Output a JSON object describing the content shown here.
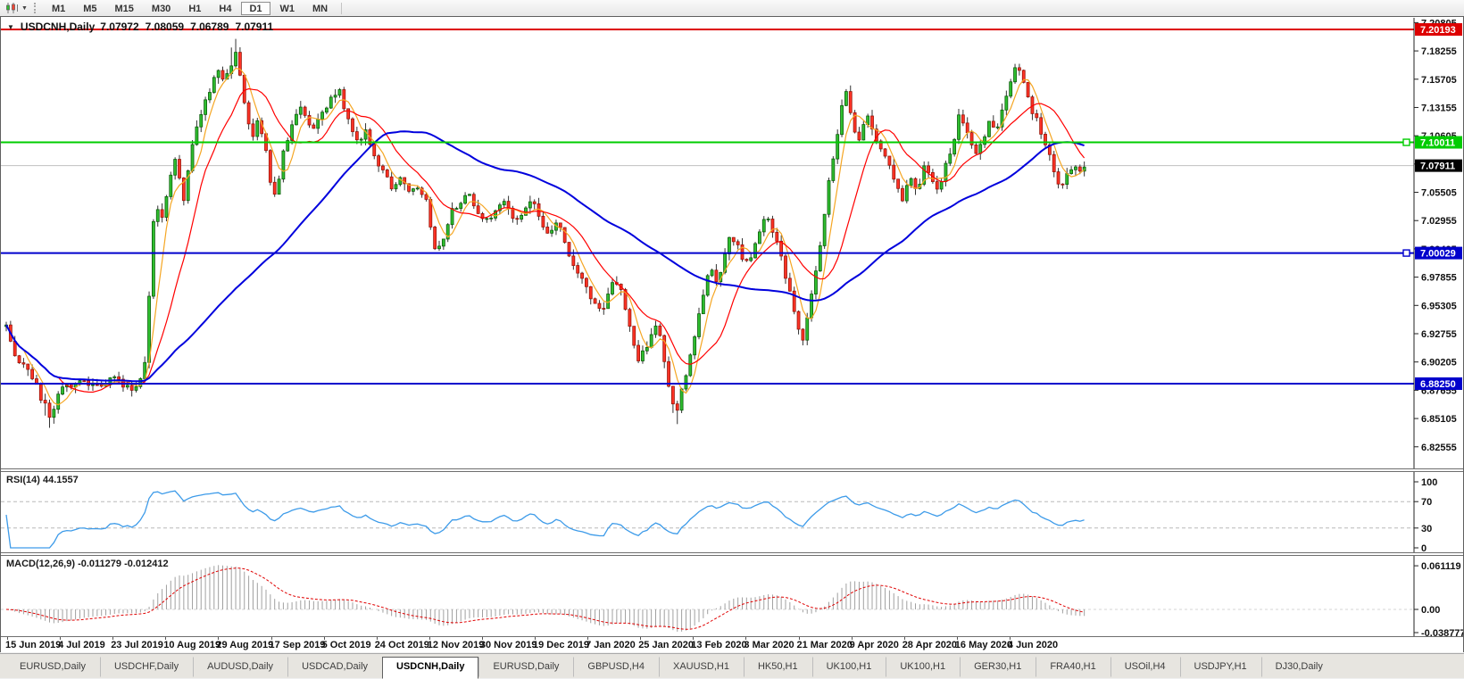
{
  "toolbar": {
    "chart_icon": "candlestick-chart-icon",
    "dropdown_icon": "chevron-down-icon",
    "timeframes": [
      "M1",
      "M5",
      "M15",
      "M30",
      "H1",
      "H4",
      "D1",
      "W1",
      "MN"
    ],
    "active_timeframe": "D1"
  },
  "chart": {
    "symbol": "USDCNH,Daily",
    "ohlc": {
      "open": "7.07972",
      "high": "7.08059",
      "low": "7.06789",
      "close": "7.07911"
    },
    "price_axis": {
      "ticks": [
        "7.20805",
        "7.18255",
        "7.15705",
        "7.13155",
        "7.10605",
        "7.08055",
        "7.05505",
        "7.02955",
        "7.00405",
        "6.97855",
        "6.95305",
        "6.92755",
        "6.90205",
        "6.87655",
        "6.85105",
        "6.82555"
      ]
    },
    "level_lines": [
      {
        "name": "resistance-line",
        "price": 7.20193,
        "label": "7.20193",
        "color": "#dd0000",
        "handle": false
      },
      {
        "name": "green-level-line",
        "price": 7.10011,
        "label": "7.10011",
        "color": "#00cc00",
        "handle": true
      },
      {
        "name": "support-line-1",
        "price": 7.00029,
        "label": "7.00029",
        "color": "#0000cc",
        "handle": true
      },
      {
        "name": "support-line-2",
        "price": 6.8825,
        "label": "6.88250",
        "color": "#0000cc",
        "handle": false
      }
    ],
    "current_price": {
      "label": "7.07911",
      "price": 7.07911,
      "bg": "#000000",
      "text": "#ffffff",
      "line_color": "#c0c0c0"
    }
  },
  "rsi": {
    "label": "RSI(14) 44.1557",
    "period": 14,
    "value": 44.1557,
    "axis": [
      "100",
      "70",
      "30",
      "0"
    ],
    "levels": [
      70,
      30
    ],
    "line_color": "#3d9be9"
  },
  "macd": {
    "label": "MACD(12,26,9) -0.011279 -0.012412",
    "fast": 12,
    "slow": 26,
    "signal": 9,
    "value": -0.011279,
    "signal_value": -0.012412,
    "axis_top": "0.061119",
    "axis_zero": "0.00",
    "axis_bottom": "-0.038777",
    "hist_color": "#a0a0a0",
    "signal_color": "#e00000"
  },
  "date_axis": [
    "15 Jun 2019",
    "4 Jul 2019",
    "23 Jul 2019",
    "10 Aug 2019",
    "29 Aug 2019",
    "17 Sep 2019",
    "5 Oct 2019",
    "24 Oct 2019",
    "12 Nov 2019",
    "30 Nov 2019",
    "19 Dec 2019",
    "7 Jan 2020",
    "25 Jan 2020",
    "13 Feb 2020",
    "3 Mar 2020",
    "21 Mar 2020",
    "9 Apr 2020",
    "28 Apr 2020",
    "16 May 2020",
    "4 Jun 2020"
  ],
  "tabs": [
    {
      "label": "EURUSD,Daily",
      "active": false
    },
    {
      "label": "USDCHF,Daily",
      "active": false
    },
    {
      "label": "AUDUSD,Daily",
      "active": false
    },
    {
      "label": "USDCAD,Daily",
      "active": false
    },
    {
      "label": "USDCNH,Daily",
      "active": true
    },
    {
      "label": "EURUSD,Daily",
      "active": false
    },
    {
      "label": "GBPUSD,H4",
      "active": false
    },
    {
      "label": "XAUUSD,H1",
      "active": false
    },
    {
      "label": "HK50,H1",
      "active": false
    },
    {
      "label": "UK100,H1",
      "active": false
    },
    {
      "label": "UK100,H1",
      "active": false
    },
    {
      "label": "GER30,H1",
      "active": false
    },
    {
      "label": "FRA40,H1",
      "active": false
    },
    {
      "label": "USOil,H4",
      "active": false
    },
    {
      "label": "USDJPY,H1",
      "active": false
    },
    {
      "label": "DJ30,Daily",
      "active": false
    }
  ],
  "chart_data": {
    "type": "candlestick",
    "symbol": "USDCNH",
    "timeframe": "Daily",
    "date_range": [
      "15 Jun 2019",
      "12 Jun 2020"
    ],
    "price_axis_range": [
      6.8255,
      7.21
    ],
    "key_levels": {
      "resistance": 7.20193,
      "green_level": 7.10011,
      "current": 7.07911,
      "support_1": 7.00029,
      "support_2": 6.8825
    },
    "last_candle": {
      "open": 7.07972,
      "high": 7.08059,
      "low": 7.06789,
      "close": 7.07911
    },
    "candle_colors": {
      "up_fill": "#2fbf2f",
      "up_stroke": "#0b5d0b",
      "down_fill": "#ff3326",
      "down_stroke": "#991409",
      "wick": "#333333"
    },
    "moving_averages": [
      {
        "name": "ma-fast-line",
        "period": 5,
        "color": "#f5a623",
        "width": 1.2
      },
      {
        "name": "ma-medium-line",
        "period": 13,
        "color": "#ff0000",
        "width": 1.2
      },
      {
        "name": "ma-slow-line",
        "period": 55,
        "color": "#0000dd",
        "width": 2
      }
    ],
    "price_anchors": [
      [
        5,
        6.935
      ],
      [
        18,
        6.905
      ],
      [
        35,
        6.888
      ],
      [
        50,
        6.862
      ],
      [
        56,
        6.848
      ],
      [
        66,
        6.878
      ],
      [
        85,
        6.884
      ],
      [
        105,
        6.879
      ],
      [
        125,
        6.886
      ],
      [
        145,
        6.879
      ],
      [
        158,
        6.886
      ],
      [
        163,
        6.905
      ],
      [
        168,
        6.995
      ],
      [
        173,
        7.052
      ],
      [
        179,
        7.028
      ],
      [
        187,
        7.058
      ],
      [
        196,
        7.085
      ],
      [
        205,
        7.048
      ],
      [
        214,
        7.095
      ],
      [
        224,
        7.128
      ],
      [
        234,
        7.148
      ],
      [
        242,
        7.168
      ],
      [
        250,
        7.152
      ],
      [
        258,
        7.172
      ],
      [
        265,
        7.182
      ],
      [
        272,
        7.138
      ],
      [
        280,
        7.103
      ],
      [
        288,
        7.122
      ],
      [
        296,
        7.098
      ],
      [
        304,
        7.048
      ],
      [
        311,
        7.068
      ],
      [
        318,
        7.098
      ],
      [
        328,
        7.118
      ],
      [
        338,
        7.132
      ],
      [
        348,
        7.108
      ],
      [
        358,
        7.122
      ],
      [
        368,
        7.138
      ],
      [
        378,
        7.148
      ],
      [
        388,
        7.122
      ],
      [
        398,
        7.098
      ],
      [
        408,
        7.112
      ],
      [
        418,
        7.088
      ],
      [
        428,
        7.073
      ],
      [
        438,
        7.058
      ],
      [
        448,
        7.068
      ],
      [
        458,
        7.053
      ],
      [
        468,
        7.058
      ],
      [
        478,
        7.043
      ],
      [
        486,
        7.004
      ],
      [
        495,
        7.014
      ],
      [
        505,
        7.038
      ],
      [
        515,
        7.048
      ],
      [
        525,
        7.053
      ],
      [
        535,
        7.038
      ],
      [
        545,
        7.028
      ],
      [
        555,
        7.042
      ],
      [
        565,
        7.048
      ],
      [
        575,
        7.028
      ],
      [
        585,
        7.038
      ],
      [
        595,
        7.053
      ],
      [
        605,
        7.028
      ],
      [
        615,
        7.018
      ],
      [
        625,
        7.028
      ],
      [
        635,
        6.998
      ],
      [
        645,
        6.982
      ],
      [
        655,
        6.97
      ],
      [
        665,
        6.956
      ],
      [
        675,
        6.95
      ],
      [
        685,
        6.976
      ],
      [
        695,
        6.966
      ],
      [
        705,
        6.93
      ],
      [
        715,
        6.903
      ],
      [
        725,
        6.92
      ],
      [
        735,
        6.938
      ],
      [
        742,
        6.91
      ],
      [
        750,
        6.87
      ],
      [
        756,
        6.854
      ],
      [
        762,
        6.873
      ],
      [
        770,
        6.898
      ],
      [
        778,
        6.93
      ],
      [
        786,
        6.96
      ],
      [
        794,
        6.988
      ],
      [
        802,
        6.97
      ],
      [
        810,
        6.998
      ],
      [
        818,
        7.018
      ],
      [
        826,
        7.006
      ],
      [
        834,
        6.99
      ],
      [
        842,
        7.0
      ],
      [
        850,
        7.02
      ],
      [
        858,
        7.038
      ],
      [
        866,
        7.018
      ],
      [
        874,
        6.998
      ],
      [
        882,
        6.97
      ],
      [
        890,
        6.94
      ],
      [
        898,
        6.923
      ],
      [
        906,
        6.95
      ],
      [
        914,
        6.99
      ],
      [
        922,
        7.028
      ],
      [
        930,
        7.078
      ],
      [
        938,
        7.112
      ],
      [
        946,
        7.152
      ],
      [
        954,
        7.118
      ],
      [
        962,
        7.098
      ],
      [
        970,
        7.126
      ],
      [
        978,
        7.11
      ],
      [
        986,
        7.09
      ],
      [
        994,
        7.08
      ],
      [
        1002,
        7.06
      ],
      [
        1010,
        7.05
      ],
      [
        1018,
        7.068
      ],
      [
        1026,
        7.058
      ],
      [
        1034,
        7.076
      ],
      [
        1042,
        7.066
      ],
      [
        1050,
        7.058
      ],
      [
        1058,
        7.078
      ],
      [
        1066,
        7.098
      ],
      [
        1074,
        7.126
      ],
      [
        1082,
        7.11
      ],
      [
        1090,
        7.09
      ],
      [
        1098,
        7.098
      ],
      [
        1106,
        7.118
      ],
      [
        1114,
        7.11
      ],
      [
        1122,
        7.128
      ],
      [
        1130,
        7.148
      ],
      [
        1138,
        7.17
      ],
      [
        1146,
        7.156
      ],
      [
        1154,
        7.13
      ],
      [
        1162,
        7.116
      ],
      [
        1170,
        7.098
      ],
      [
        1178,
        7.08
      ],
      [
        1186,
        7.06
      ],
      [
        1194,
        7.07
      ],
      [
        1202,
        7.08
      ],
      [
        1210,
        7.076
      ],
      [
        1215,
        7.079
      ]
    ]
  }
}
